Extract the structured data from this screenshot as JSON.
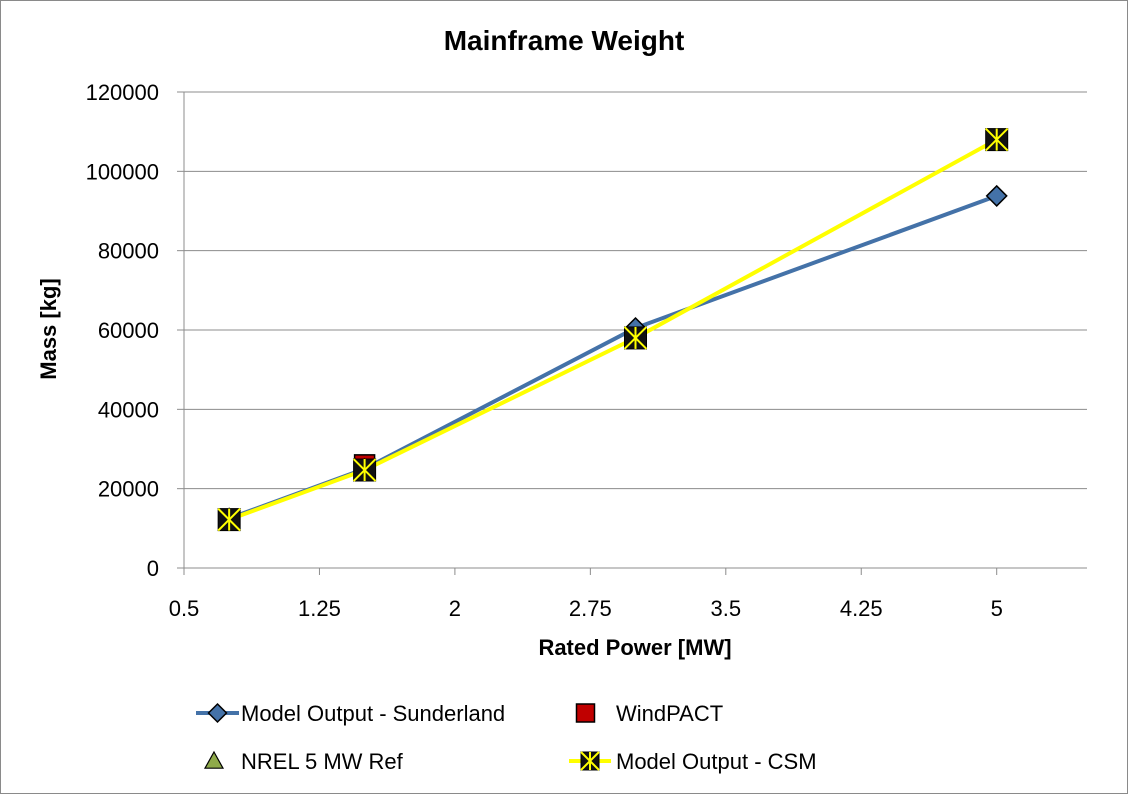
{
  "chart_data": {
    "type": "line",
    "title": "Mainframe Weight",
    "xlabel": "Rated Power [MW]",
    "ylabel": "Mass [kg]",
    "xlim": [
      0.5,
      5.5
    ],
    "ylim": [
      0,
      120000
    ],
    "x_ticks": [
      "0.5",
      "1.25",
      "2",
      "2.75",
      "3.5",
      "4.25",
      "5"
    ],
    "y_ticks": [
      "0",
      "20000",
      "40000",
      "60000",
      "80000",
      "100000",
      "120000"
    ],
    "grid": "horizontal",
    "legend_position": "bottom",
    "series": [
      {
        "name": "Model Output - Sunderland",
        "style": "line-marker",
        "marker": "diamond",
        "color": "#4472a8",
        "points": [
          [
            0.75,
            12500
          ],
          [
            1.5,
            25000
          ],
          [
            3.0,
            60500
          ],
          [
            5.0,
            93800
          ]
        ]
      },
      {
        "name": "WindPACT",
        "style": "marker",
        "marker": "square",
        "color": "#c00000",
        "points": [
          [
            1.5,
            26000
          ]
        ]
      },
      {
        "name": "NREL 5 MW Ref",
        "style": "marker",
        "marker": "triangle",
        "color": "#8faa4a",
        "points": [
          [
            1.5,
            25000
          ]
        ]
      },
      {
        "name": "Model Output - CSM",
        "style": "line-marker",
        "marker": "x-star",
        "color": "#ffff00",
        "points": [
          [
            0.75,
            12200
          ],
          [
            1.5,
            24700
          ],
          [
            3.0,
            58000
          ],
          [
            5.0,
            108000
          ]
        ]
      }
    ]
  }
}
